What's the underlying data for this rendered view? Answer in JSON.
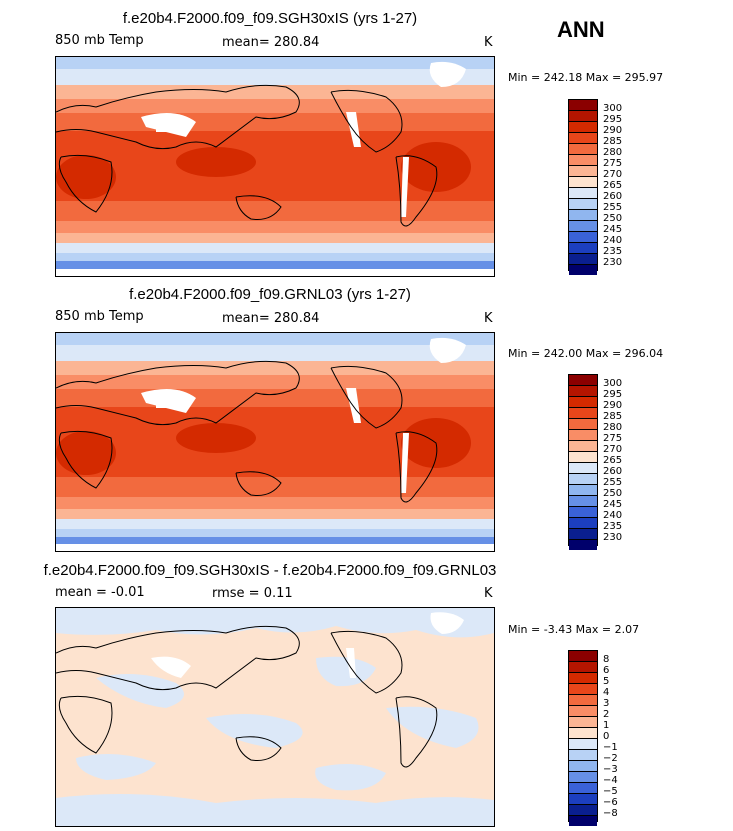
{
  "season": "ANN",
  "panels": [
    {
      "title": "f.e20b4.F2000.f09_f09.SGH30xIS (yrs 1-27)",
      "left_label": "850 mb Temp",
      "center_label": "mean= 280.84",
      "units": "K",
      "minmax": "Min = 242.18 Max = 295.97",
      "levels": [
        "300",
        "295",
        "290",
        "285",
        "280",
        "275",
        "270",
        "265",
        "260",
        "255",
        "250",
        "245",
        "240",
        "235",
        "230"
      ],
      "colors": [
        "#8b0000",
        "#b41500",
        "#d42a00",
        "#e8461a",
        "#f26a3e",
        "#f98d66",
        "#fbb594",
        "#fde3cf",
        "#dce8f8",
        "#b8d2f5",
        "#90b6ef",
        "#6690e6",
        "#3a62d8",
        "#1c3fbf",
        "#0a1f8f",
        "#00006b"
      ]
    },
    {
      "title": "f.e20b4.F2000.f09_f09.GRNL03 (yrs 1-27)",
      "left_label": "850 mb Temp",
      "center_label": "mean= 280.84",
      "units": "K",
      "minmax": "Min = 242.00 Max = 296.04",
      "levels": [
        "300",
        "295",
        "290",
        "285",
        "280",
        "275",
        "270",
        "265",
        "260",
        "255",
        "250",
        "245",
        "240",
        "235",
        "230"
      ],
      "colors": [
        "#8b0000",
        "#b41500",
        "#d42a00",
        "#e8461a",
        "#f26a3e",
        "#f98d66",
        "#fbb594",
        "#fde3cf",
        "#dce8f8",
        "#b8d2f5",
        "#90b6ef",
        "#6690e6",
        "#3a62d8",
        "#1c3fbf",
        "#0a1f8f",
        "#00006b"
      ]
    },
    {
      "title": "f.e20b4.F2000.f09_f09.SGH30xIS - f.e20b4.F2000.f09_f09.GRNL03",
      "left_label": "mean =   -0.01",
      "center_label": "rmse =    0.11",
      "units": "K",
      "minmax": "Min =  -3.43 Max =    2.07",
      "levels": [
        "8",
        "6",
        "5",
        "4",
        "3",
        "2",
        "1",
        "0",
        "−1",
        "−2",
        "−3",
        "−4",
        "−5",
        "−6",
        "−8"
      ],
      "colors": [
        "#8b0000",
        "#b41500",
        "#d42a00",
        "#e8461a",
        "#f26a3e",
        "#f98d66",
        "#fbb594",
        "#fde3cf",
        "#dce8f8",
        "#b8d2f5",
        "#90b6ef",
        "#6690e6",
        "#3a62d8",
        "#1c3fbf",
        "#0a1f8f",
        "#00006b"
      ]
    }
  ],
  "chart_data": [
    {
      "type": "heatmap",
      "title": "f.e20b4.F2000.f09_f09.SGH30xIS (yrs 1-27)",
      "variable": "850 mb Temp",
      "units": "K",
      "mean": 280.84,
      "min": 242.18,
      "max": 295.97,
      "contour_levels": [
        230,
        235,
        240,
        245,
        250,
        255,
        260,
        265,
        270,
        275,
        280,
        285,
        290,
        295,
        300
      ]
    },
    {
      "type": "heatmap",
      "title": "f.e20b4.F2000.f09_f09.GRNL03 (yrs 1-27)",
      "variable": "850 mb Temp",
      "units": "K",
      "mean": 280.84,
      "min": 242.0,
      "max": 296.04,
      "contour_levels": [
        230,
        235,
        240,
        245,
        250,
        255,
        260,
        265,
        270,
        275,
        280,
        285,
        290,
        295,
        300
      ]
    },
    {
      "type": "heatmap",
      "title": "f.e20b4.F2000.f09_f09.SGH30xIS - f.e20b4.F2000.f09_f09.GRNL03",
      "units": "K",
      "mean": -0.01,
      "rmse": 0.11,
      "min": -3.43,
      "max": 2.07,
      "contour_levels": [
        -8,
        -6,
        -5,
        -4,
        -3,
        -2,
        -1,
        0,
        1,
        2,
        3,
        4,
        5,
        6,
        8
      ]
    }
  ]
}
